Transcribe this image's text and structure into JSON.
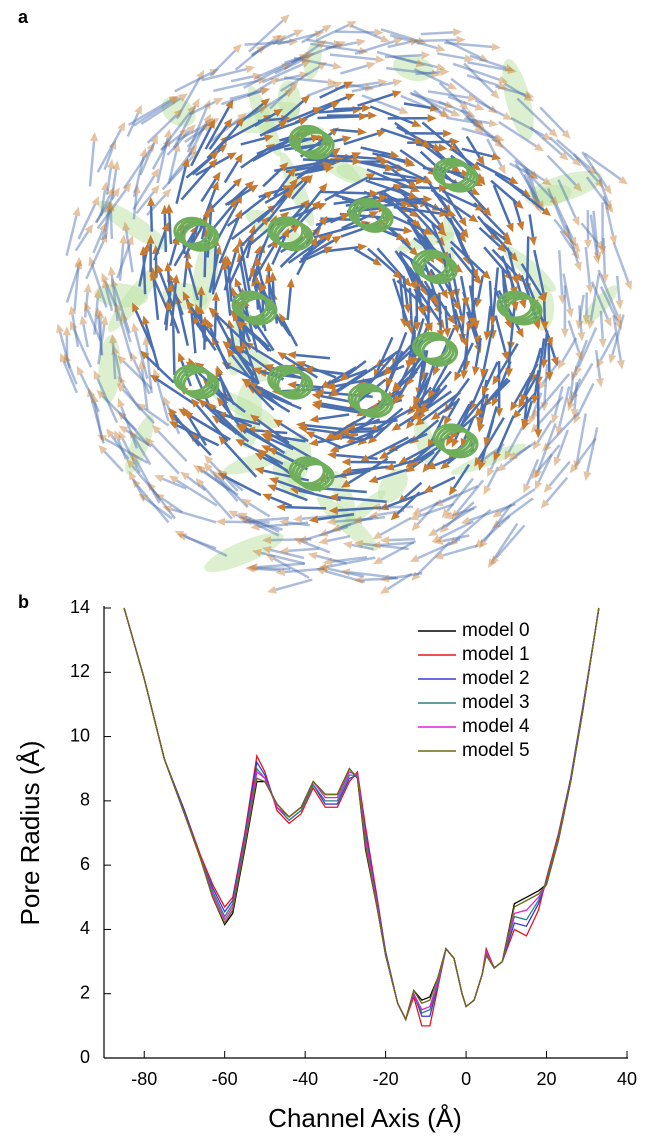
{
  "figure": {
    "panel_a_label": "a"
  },
  "chart_data": {
    "type": "line",
    "panel_label": "b",
    "x_label": "Channel Axis (Å)",
    "y_label": "Pore Radius (Å)",
    "x": [
      -85,
      -80,
      -75,
      -70,
      -66,
      -63,
      -60,
      -58,
      -55,
      -52,
      -50,
      -47,
      -44,
      -41,
      -38,
      -35,
      -32,
      -29,
      -27,
      -25,
      -22,
      -20,
      -17,
      -15,
      -13,
      -11,
      -9,
      -7,
      -5,
      -3,
      -1,
      0,
      2,
      4,
      5,
      7,
      9,
      12,
      15,
      18,
      20,
      23,
      26,
      29,
      32,
      33
    ],
    "series": [
      {
        "name": "model 0",
        "color": "#000000",
        "values": [
          14,
          11.8,
          9.3,
          7.6,
          6.2,
          5.0,
          4.15,
          4.5,
          6.5,
          8.6,
          8.6,
          7.9,
          7.5,
          7.8,
          8.6,
          8.2,
          8.2,
          9.0,
          8.7,
          6.5,
          4.6,
          3.2,
          1.7,
          1.2,
          2.1,
          1.8,
          1.9,
          2.5,
          3.4,
          3.1,
          2.0,
          1.6,
          1.8,
          2.6,
          3.2,
          2.8,
          3.0,
          4.8,
          5.0,
          5.2,
          5.4,
          6.8,
          8.6,
          10.8,
          13.2,
          14
        ]
      },
      {
        "name": "model 1",
        "color": "#e8141c",
        "values": [
          14,
          11.8,
          9.3,
          7.7,
          6.3,
          5.4,
          4.7,
          5.0,
          7.0,
          9.4,
          8.9,
          7.7,
          7.3,
          7.6,
          8.4,
          7.8,
          7.8,
          8.6,
          8.9,
          7.2,
          4.9,
          3.3,
          1.7,
          1.2,
          1.9,
          1.0,
          1.0,
          2.2,
          3.4,
          3.1,
          2.0,
          1.6,
          1.8,
          2.6,
          3.4,
          2.8,
          3.0,
          4.0,
          3.8,
          4.6,
          5.6,
          7.0,
          8.7,
          10.9,
          13.2,
          14
        ]
      },
      {
        "name": "model 2",
        "color": "#3a3ad8",
        "values": [
          14,
          11.8,
          9.3,
          7.7,
          6.2,
          5.3,
          4.55,
          4.9,
          6.9,
          9.2,
          8.8,
          7.8,
          7.4,
          7.7,
          8.5,
          7.9,
          7.9,
          8.7,
          8.8,
          7.0,
          4.8,
          3.3,
          1.7,
          1.2,
          2.0,
          1.3,
          1.3,
          2.3,
          3.4,
          3.1,
          2.0,
          1.6,
          1.8,
          2.6,
          3.3,
          2.8,
          3.0,
          4.2,
          4.1,
          4.8,
          5.5,
          6.9,
          8.7,
          10.9,
          13.2,
          14
        ]
      },
      {
        "name": "model 3",
        "color": "#2f7f82",
        "values": [
          14,
          11.8,
          9.3,
          7.6,
          6.2,
          5.2,
          4.4,
          4.8,
          6.8,
          9.0,
          8.7,
          7.8,
          7.4,
          7.7,
          8.5,
          8.0,
          8.0,
          8.8,
          8.8,
          6.9,
          4.7,
          3.2,
          1.7,
          1.2,
          2.0,
          1.4,
          1.5,
          2.3,
          3.4,
          3.1,
          2.0,
          1.6,
          1.8,
          2.6,
          3.3,
          2.8,
          3.0,
          4.4,
          4.3,
          4.9,
          5.5,
          6.9,
          8.6,
          10.8,
          13.2,
          14
        ]
      },
      {
        "name": "model 4",
        "color": "#e020e0",
        "values": [
          14,
          11.8,
          9.3,
          7.6,
          6.2,
          5.1,
          4.3,
          4.7,
          6.7,
          8.9,
          8.7,
          7.8,
          7.5,
          7.8,
          8.6,
          8.1,
          8.1,
          8.9,
          8.8,
          6.8,
          4.7,
          3.2,
          1.7,
          1.2,
          2.0,
          1.5,
          1.6,
          2.4,
          3.4,
          3.1,
          2.0,
          1.6,
          1.8,
          2.6,
          3.3,
          2.8,
          3.0,
          4.5,
          4.6,
          5.0,
          5.4,
          6.8,
          8.6,
          10.8,
          13.2,
          14
        ]
      },
      {
        "name": "model 5",
        "color": "#6b6b10",
        "values": [
          14,
          11.8,
          9.3,
          7.6,
          6.2,
          5.0,
          4.2,
          4.6,
          6.6,
          8.7,
          8.6,
          7.9,
          7.5,
          7.8,
          8.6,
          8.2,
          8.2,
          9.0,
          8.7,
          6.6,
          4.6,
          3.2,
          1.7,
          1.2,
          2.1,
          1.7,
          1.8,
          2.5,
          3.4,
          3.1,
          2.0,
          1.6,
          1.8,
          2.6,
          3.2,
          2.8,
          3.0,
          4.7,
          4.9,
          5.1,
          5.4,
          6.8,
          8.6,
          10.8,
          13.2,
          14
        ]
      }
    ],
    "xlim": [
      -90,
      40
    ],
    "xticks": [
      -80,
      -60,
      -40,
      -20,
      0,
      20,
      40
    ],
    "ylim": [
      0,
      14
    ],
    "yticks": [
      0,
      2,
      4,
      6,
      8,
      10,
      12,
      14
    ],
    "legend": "top-right"
  }
}
